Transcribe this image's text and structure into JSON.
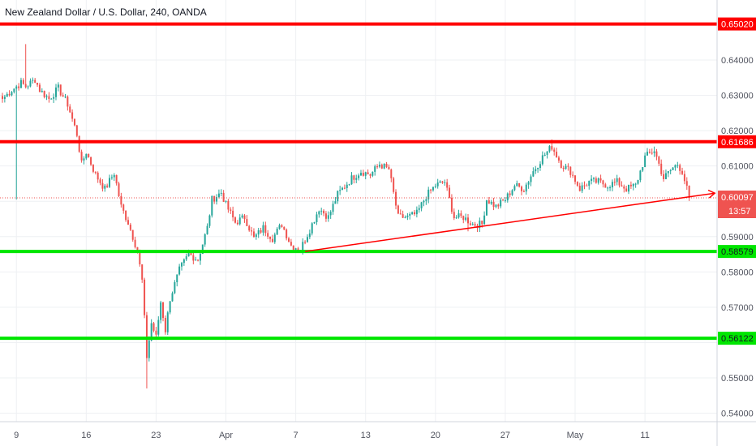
{
  "header": {
    "title": "New Zealand Dollar / U.S. Dollar, 240, OANDA"
  },
  "colors": {
    "up": "#26a69a",
    "down": "#ef5350",
    "resistance": "#ff0000",
    "support": "#00e600",
    "trendline": "#ff0000",
    "grid": "#eef0f3",
    "price_line": "#ef5350"
  },
  "chart_data": {
    "type": "candlestick",
    "symbol": "NZDUSD",
    "interval": "240",
    "exchange": "OANDA",
    "y_axis": {
      "ticks": [
        "0.64000",
        "0.63000",
        "0.62000",
        "0.61000",
        "0.59000",
        "0.58000",
        "0.57000",
        "0.55000",
        "0.54000"
      ],
      "tick_values": [
        0.64,
        0.63,
        0.62,
        0.61,
        0.59,
        0.58,
        0.57,
        0.55,
        0.54
      ],
      "ylim": [
        0.5375,
        0.6545
      ]
    },
    "x_axis": {
      "labels": [
        "9",
        "16",
        "23",
        "Apr",
        "7",
        "13",
        "20",
        "27",
        "May",
        "11"
      ],
      "label_index": [
        6,
        36,
        66,
        96,
        126,
        156,
        186,
        216,
        246,
        276
      ]
    },
    "horizontal_levels": [
      {
        "value": 0.6502,
        "label": "0.65020",
        "color": "#ff0000"
      },
      {
        "value": 0.61686,
        "label": "0.61686",
        "color": "#ff0000"
      },
      {
        "value": 0.58579,
        "label": "0.58579",
        "color": "#00e600"
      },
      {
        "value": 0.56122,
        "label": "0.56122",
        "color": "#00e600"
      }
    ],
    "trendline": {
      "from": [
        130,
        0.5858
      ],
      "to": [
        306,
        0.6023
      ],
      "arrow": true
    },
    "last_price": {
      "value": 0.60097,
      "label": "0.60097",
      "countdown": "13:57"
    },
    "anchors": [
      [
        0,
        0.629
      ],
      [
        4,
        0.6315
      ],
      [
        8,
        0.6335
      ],
      [
        10,
        0.6325
      ],
      [
        14,
        0.6345
      ],
      [
        16,
        0.6315
      ],
      [
        20,
        0.629
      ],
      [
        24,
        0.632
      ],
      [
        28,
        0.6275
      ],
      [
        32,
        0.619
      ],
      [
        34,
        0.6105
      ],
      [
        36,
        0.614
      ],
      [
        40,
        0.6075
      ],
      [
        44,
        0.6035
      ],
      [
        48,
        0.608
      ],
      [
        51,
        0.5985
      ],
      [
        54,
        0.594
      ],
      [
        58,
        0.586
      ],
      [
        60,
        0.5775
      ],
      [
        62,
        0.556
      ],
      [
        64,
        0.5655
      ],
      [
        66,
        0.5615
      ],
      [
        68,
        0.5715
      ],
      [
        70,
        0.5635
      ],
      [
        72,
        0.5725
      ],
      [
        76,
        0.5805
      ],
      [
        80,
        0.585
      ],
      [
        84,
        0.5835
      ],
      [
        88,
        0.5925
      ],
      [
        90,
        0.6005
      ],
      [
        92,
        0.6015
      ],
      [
        94,
        0.6025
      ],
      [
        96,
        0.599
      ],
      [
        100,
        0.594
      ],
      [
        104,
        0.5955
      ],
      [
        108,
        0.5895
      ],
      [
        112,
        0.5925
      ],
      [
        116,
        0.5895
      ],
      [
        120,
        0.5935
      ],
      [
        124,
        0.5875
      ],
      [
        128,
        0.5865
      ],
      [
        132,
        0.592
      ],
      [
        136,
        0.598
      ],
      [
        140,
        0.5955
      ],
      [
        144,
        0.602
      ],
      [
        150,
        0.6065
      ],
      [
        154,
        0.6085
      ],
      [
        158,
        0.6075
      ],
      [
        162,
        0.6105
      ],
      [
        166,
        0.609
      ],
      [
        170,
        0.5955
      ],
      [
        174,
        0.5955
      ],
      [
        178,
        0.5965
      ],
      [
        182,
        0.6015
      ],
      [
        186,
        0.6045
      ],
      [
        190,
        0.6055
      ],
      [
        194,
        0.5955
      ],
      [
        198,
        0.5955
      ],
      [
        202,
        0.5935
      ],
      [
        206,
        0.5935
      ],
      [
        208,
        0.6005
      ],
      [
        212,
        0.5985
      ],
      [
        216,
        0.6005
      ],
      [
        220,
        0.6045
      ],
      [
        224,
        0.6035
      ],
      [
        228,
        0.6085
      ],
      [
        232,
        0.6125
      ],
      [
        236,
        0.6155
      ],
      [
        240,
        0.6105
      ],
      [
        244,
        0.6085
      ],
      [
        248,
        0.6035
      ],
      [
        252,
        0.6055
      ],
      [
        256,
        0.6055
      ],
      [
        260,
        0.6045
      ],
      [
        264,
        0.6055
      ],
      [
        268,
        0.6035
      ],
      [
        272,
        0.6045
      ],
      [
        276,
        0.6125
      ],
      [
        280,
        0.6145
      ],
      [
        284,
        0.6065
      ],
      [
        288,
        0.6095
      ],
      [
        290,
        0.6105
      ],
      [
        292,
        0.6085
      ],
      [
        295,
        0.60097
      ]
    ],
    "lows_marked": [
      [
        6,
        0.6005
      ],
      [
        62,
        0.547
      ],
      [
        128,
        0.5855
      ],
      [
        200,
        0.5915
      ]
    ],
    "highs_marked": [
      [
        10,
        0.6445
      ],
      [
        236,
        0.6175
      ],
      [
        280,
        0.6155
      ]
    ]
  }
}
